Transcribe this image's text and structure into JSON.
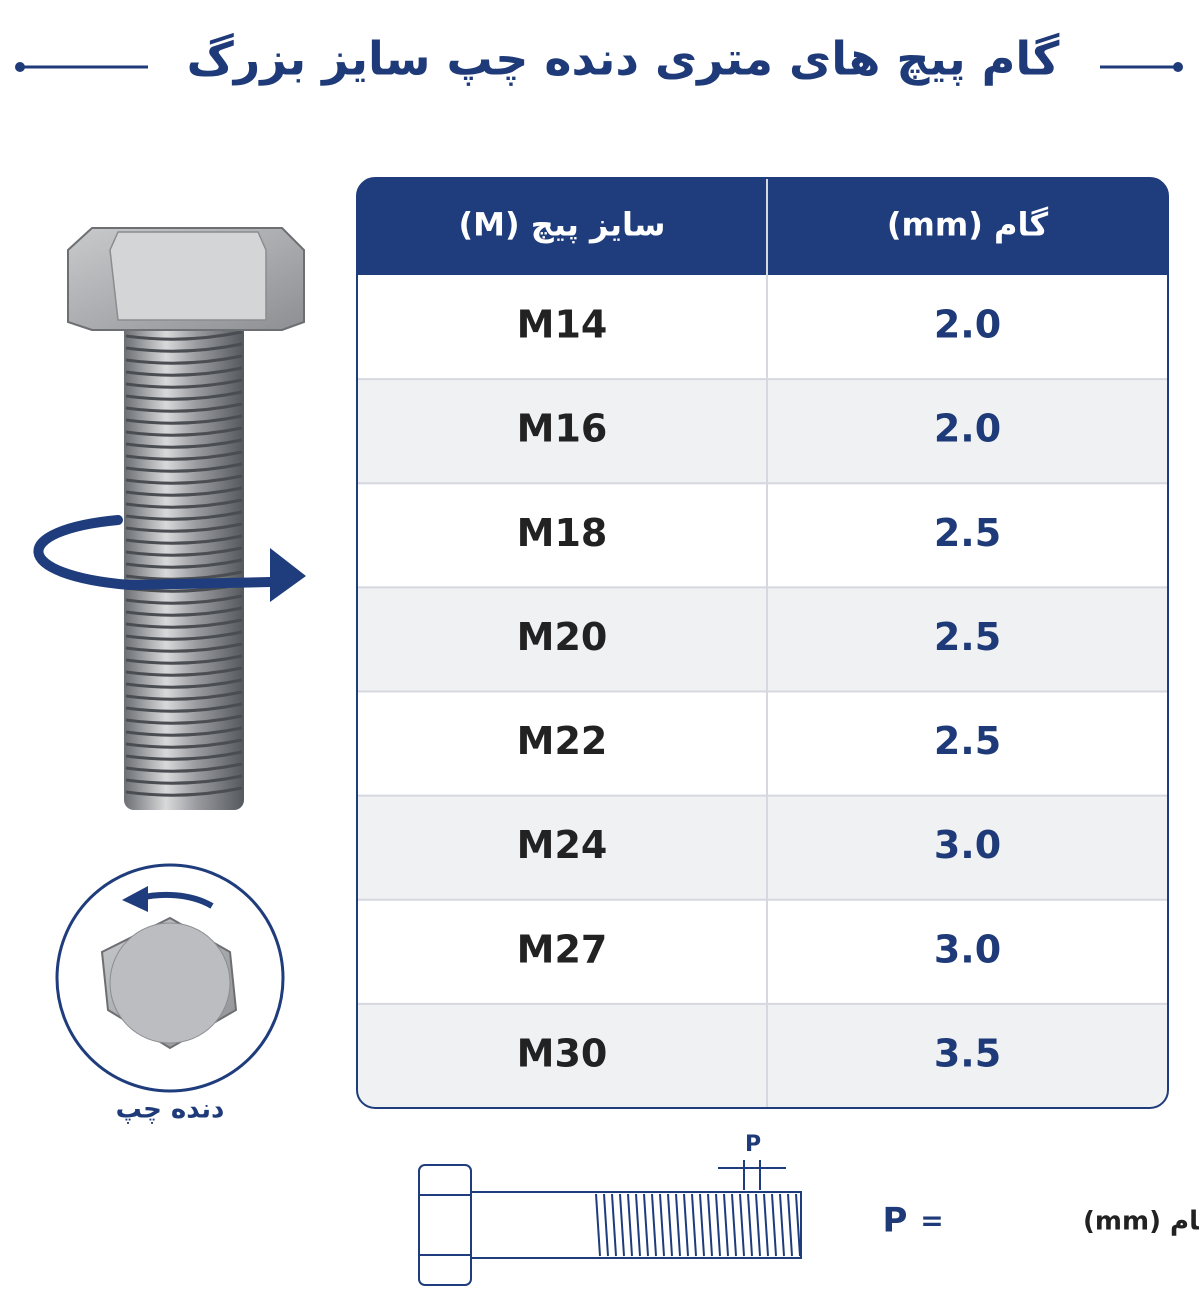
{
  "header": {
    "title": "گام پیچ های متری دنده چپ سایز بزرگ"
  },
  "table": {
    "columns": [
      "سایز پیچ (M)",
      "گام (mm)"
    ],
    "rows": [
      [
        "M14",
        "2.0"
      ],
      [
        "M16",
        "2.0"
      ],
      [
        "M18",
        "2.5"
      ],
      [
        "M20",
        "2.5"
      ],
      [
        "M22",
        "2.5"
      ],
      [
        "M24",
        "3.0"
      ],
      [
        "M27",
        "3.0"
      ],
      [
        "M30",
        "3.5"
      ]
    ]
  },
  "illustration": {
    "caption": "دنده چپ"
  },
  "diagram": {
    "pitch_label": "P",
    "legend": {
      "symbol": "P",
      "equals": "=",
      "text": "گام (mm)"
    }
  }
}
